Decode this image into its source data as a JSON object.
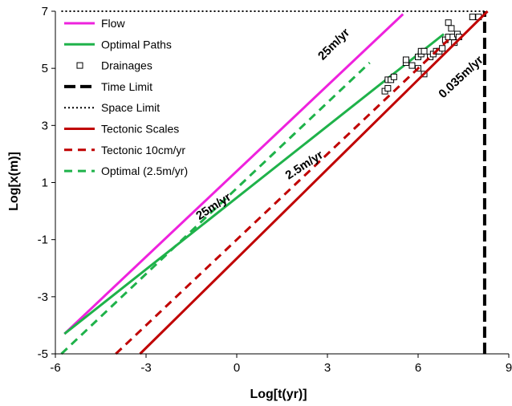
{
  "chart_data": {
    "type": "line",
    "xlabel": "Log[t(yr)]",
    "ylabel": "Log[x(m)]",
    "xlim": [
      -6,
      9
    ],
    "ylim": [
      -5,
      7
    ],
    "x_ticks": [
      "-6",
      "-3",
      "0",
      "3",
      "6",
      "9"
    ],
    "y_ticks": [
      "-5",
      "-3",
      "-1",
      "1",
      "3",
      "5",
      "7"
    ],
    "series": [
      {
        "name": "Flow",
        "color": "#ee22dd",
        "dash": "solid",
        "points": [
          [
            -5.7,
            -4.3
          ],
          [
            5.5,
            6.9
          ]
        ]
      },
      {
        "name": "Optimal Paths",
        "color": "#1fb24a",
        "dash": "solid",
        "points": [
          [
            -5.7,
            -4.3
          ],
          [
            6.85,
            6.2
          ]
        ]
      },
      {
        "name": "Drainages",
        "color": "#000000",
        "marker": "square",
        "points": [
          [
            4.9,
            4.2
          ],
          [
            5.0,
            4.3
          ],
          [
            5.0,
            4.6
          ],
          [
            5.1,
            4.6
          ],
          [
            5.2,
            4.7
          ],
          [
            5.6,
            5.2
          ],
          [
            5.6,
            5.3
          ],
          [
            5.8,
            5.1
          ],
          [
            6.0,
            5.0
          ],
          [
            6.0,
            5.4
          ],
          [
            6.1,
            5.5
          ],
          [
            6.1,
            5.6
          ],
          [
            6.2,
            5.6
          ],
          [
            6.2,
            4.8
          ],
          [
            6.4,
            5.4
          ],
          [
            6.5,
            5.5
          ],
          [
            6.6,
            5.6
          ],
          [
            6.7,
            5.6
          ],
          [
            6.8,
            5.7
          ],
          [
            6.9,
            6.0
          ],
          [
            7.0,
            6.1
          ],
          [
            7.0,
            6.6
          ],
          [
            7.1,
            6.4
          ],
          [
            7.15,
            6.1
          ],
          [
            7.2,
            5.9
          ],
          [
            7.3,
            6.2
          ],
          [
            7.35,
            6.1
          ],
          [
            7.8,
            6.8
          ],
          [
            8.0,
            6.8
          ]
        ]
      },
      {
        "name": "Time Limit",
        "color": "#000000",
        "dash": "long-dash",
        "points": [
          [
            8.2,
            -5
          ],
          [
            8.2,
            7
          ]
        ]
      },
      {
        "name": "Space Limit",
        "color": "#000000",
        "dash": "dotted",
        "points": [
          [
            -5.8,
            7
          ],
          [
            8.2,
            7
          ]
        ]
      },
      {
        "name": "Tectonic Scales",
        "color": "#c00000",
        "dash": "solid",
        "points": [
          [
            -3.2,
            -5
          ],
          [
            8.3,
            7
          ]
        ]
      },
      {
        "name": "Tectonic 10cm/yr",
        "color": "#c00000",
        "dash": "dashed",
        "points": [
          [
            -4.0,
            -5
          ],
          [
            7.0,
            6.0
          ]
        ]
      },
      {
        "name": "Optimal (2.5m/yr)",
        "color": "#1fb24a",
        "dash": "dashed",
        "points": [
          [
            -5.8,
            -5
          ],
          [
            4.4,
            5.2
          ]
        ]
      }
    ],
    "annotations": [
      {
        "text": "25m/yr",
        "x": 3.3,
        "y": 5.75,
        "angle": -45
      },
      {
        "text": "25m/yr",
        "x": -0.7,
        "y": 0.05,
        "angle": -33
      },
      {
        "text": "2.5m/yr",
        "x": 2.3,
        "y": 1.5,
        "angle": -33
      },
      {
        "text": "0.035m/yr",
        "x": 7.5,
        "y": 4.6,
        "angle": -43
      }
    ],
    "legend": {
      "position": "top-left"
    },
    "grid": false
  }
}
